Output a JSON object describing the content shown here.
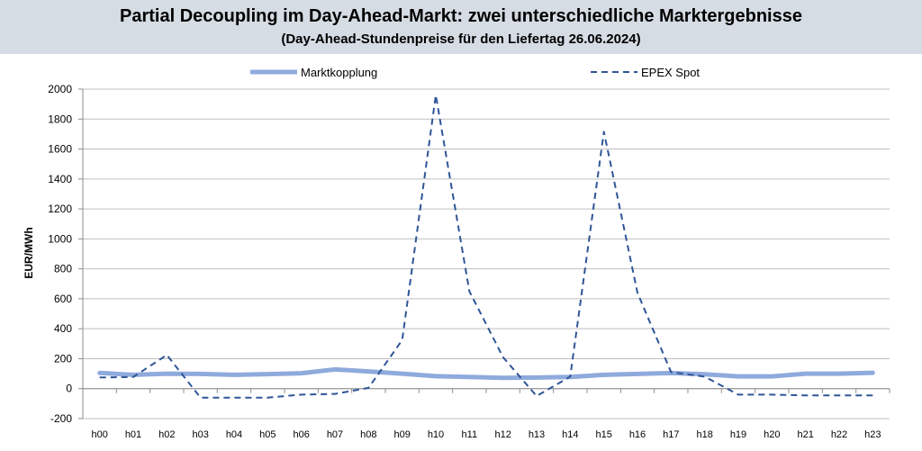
{
  "header": {
    "title": "Partial Decoupling im Day-Ahead-Markt: zwei unterschiedliche Marktergebnisse",
    "subtitle": "(Day-Ahead-Stundenpreise für den Liefertag 26.06.2024)"
  },
  "chart_data": {
    "type": "line",
    "ylabel": "EUR/MWh",
    "ylim": [
      -200,
      2000
    ],
    "yticks": [
      -200,
      0,
      200,
      400,
      600,
      800,
      1000,
      1200,
      1400,
      1600,
      1800,
      2000
    ],
    "grid": true,
    "legend_position": "top",
    "categories": [
      "h00",
      "h01",
      "h02",
      "h03",
      "h04",
      "h05",
      "h06",
      "h07",
      "h08",
      "h09",
      "h10",
      "h11",
      "h12",
      "h13",
      "h14",
      "h15",
      "h16",
      "h17",
      "h18",
      "h19",
      "h20",
      "h21",
      "h22",
      "h23"
    ],
    "series": [
      {
        "name": "Marktkopplung",
        "style": "solid",
        "color": "#8faadc",
        "values": [
          105,
          92,
          100,
          98,
          92,
          97,
          103,
          128,
          115,
          100,
          83,
          78,
          72,
          74,
          78,
          92,
          98,
          104,
          96,
          82,
          82,
          100,
          100,
          106
        ]
      },
      {
        "name": "EPEX Spot",
        "style": "dashed",
        "color": "#2f5597",
        "values": [
          75,
          78,
          225,
          -60,
          -60,
          -60,
          -40,
          -35,
          5,
          325,
          1960,
          650,
          210,
          -50,
          80,
          1715,
          640,
          110,
          80,
          -40,
          -40,
          -45,
          -45,
          -45
        ]
      }
    ]
  }
}
